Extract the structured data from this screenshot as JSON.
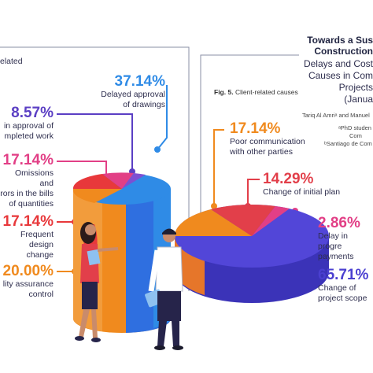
{
  "header": {
    "title_line1": "Towards a Sus",
    "title_line2": "Construction",
    "subtitle_line1": "Delays and Cost",
    "subtitle_line2": "Causes in Com",
    "subtitle_line3": "Projects",
    "subtitle_line4": "(Janua",
    "authors": "Tariq Al Amriᵃ and Manuel",
    "affil1": "ᵃPhD studen",
    "affil2": "Com",
    "affil3": "ᵇSantiago de Com"
  },
  "left_header_fragment": "elated",
  "figure": {
    "number": "Fig. 5.",
    "caption": "Client-related causes"
  },
  "left_items": [
    {
      "pct": "37.14%",
      "label_lines": [
        "Delayed approval",
        "of drawings"
      ],
      "color": "#2f8be6"
    },
    {
      "pct": "8.57%",
      "label_lines": [
        "in approval of",
        "mpleted work"
      ],
      "color": "#5b3fc4"
    },
    {
      "pct": "17.14%",
      "label_lines": [
        "Omissions and",
        "rors in the bills",
        "of quantities"
      ],
      "color": "#e23f86"
    },
    {
      "pct": "17.14%",
      "label_lines": [
        "Frequent",
        "design change"
      ],
      "color": "#e8383b"
    },
    {
      "pct": "20.00%",
      "label_lines": [
        "lity assurance",
        "control"
      ],
      "color": "#f08a1e"
    }
  ],
  "right_items": [
    {
      "pct": "17.14%",
      "label_lines": [
        "Poor communication",
        "with other parties"
      ],
      "color": "#f08a1e"
    },
    {
      "pct": "14.29%",
      "label_lines": [
        "Change of initial plan"
      ],
      "color": "#e23f4a"
    },
    {
      "pct": "2.86%",
      "label_lines": [
        "Delay in progre",
        "payments"
      ],
      "color": "#e23f86"
    },
    {
      "pct": "65.71%",
      "label_lines": [
        "Change of",
        "project scope"
      ],
      "color": "#4a3fd0"
    }
  ],
  "chart_data": [
    {
      "type": "pie",
      "categories": [
        "Delayed approval of drawings",
        "Delay in approval of completed work",
        "Omissions and errors in the bills of quantities",
        "Frequent design change",
        "Quality assurance control"
      ],
      "values": [
        37.14,
        8.57,
        17.14,
        17.14,
        20.0
      ],
      "unit": "%"
    },
    {
      "type": "pie",
      "categories": [
        "Poor communication with other parties",
        "Change of initial plan",
        "Delay in progress payments",
        "Change of project scope"
      ],
      "values": [
        17.14,
        14.29,
        2.86,
        65.71
      ],
      "unit": "%"
    }
  ]
}
